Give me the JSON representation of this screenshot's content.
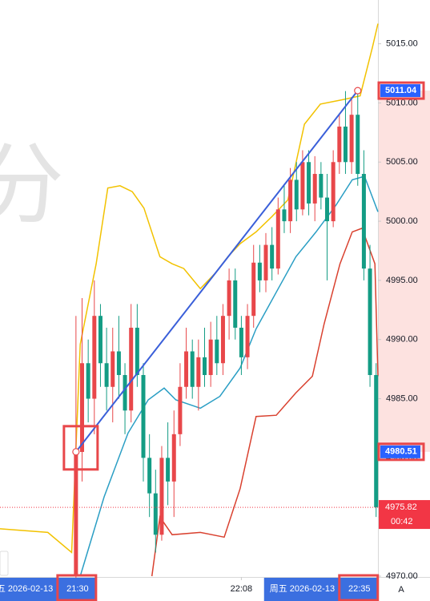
{
  "chart_data": {
    "type": "candlestick",
    "watermark": "分",
    "xlim": [
      -12.4,
      49.3
    ],
    "ylim": [
      4970,
      5018.7
    ],
    "yticks": [
      {
        "value": 4970,
        "label": "4970.00"
      },
      {
        "value": 4975,
        "label": "4975.00"
      },
      {
        "value": 4980,
        "label": "4980.00"
      },
      {
        "value": 4985,
        "label": "4985.00"
      },
      {
        "value": 4990,
        "label": "4990.00"
      },
      {
        "value": 4995,
        "label": "4995.00"
      },
      {
        "value": 5000,
        "label": "5000.00"
      },
      {
        "value": 5005,
        "label": "5005.00"
      },
      {
        "value": 5010,
        "label": "5010.00"
      },
      {
        "value": 5015,
        "label": "5015.00"
      }
    ],
    "xticks": [
      {
        "value": 0,
        "label": "21:30"
      },
      {
        "value": 27,
        "label": "22:08"
      },
      {
        "value": 46,
        "label": "22:35"
      }
    ],
    "crosshair_date": "周五 2026-02-13",
    "edge_label": ":13",
    "up_color": "#e8474a",
    "down_color": "#139c84",
    "x": [
      0,
      1,
      2,
      3,
      4,
      5,
      6,
      7,
      8,
      9,
      10,
      11,
      12,
      13,
      14,
      15,
      16,
      17,
      18,
      19,
      20,
      21,
      22,
      23,
      24,
      25,
      26,
      27,
      28,
      29,
      30,
      31,
      32,
      33,
      34,
      35,
      36,
      37,
      38,
      39,
      40,
      41,
      42,
      43,
      44,
      45,
      46,
      47,
      48,
      49
    ],
    "open": [
      4970,
      4980.5,
      4988,
      4985,
      4992,
      4988,
      4986,
      4989,
      4987,
      4984,
      4991,
      4987,
      4980,
      4977,
      4973.5,
      4980,
      4978,
      4982,
      4986,
      4989,
      4986,
      4988.5,
      4987,
      4990,
      4988,
      4992,
      4995,
      4991,
      4988.5,
      4992,
      4996.5,
      4995,
      4998,
      4996,
      5001,
      5000,
      5003.5,
      5001,
      5005,
      5001.5,
      5004,
      5002,
      5000,
      5005,
      5008,
      5005,
      5009,
      5004,
      4996,
      4987
    ],
    "high": [
      4992,
      4993.5,
      4990,
      4995,
      4993,
      4991,
      4991,
      4992,
      4988,
      4993,
      4993,
      4988,
      4982,
      4979,
      4981,
      4983,
      4984,
      4988,
      4991,
      4990,
      4990,
      4991,
      4991.5,
      4992,
      4993,
      4996,
      4996,
      4992,
      4993,
      4998,
      4998,
      4999,
      4999.5,
      5002,
      5003,
      5004.5,
      5005,
      5006,
      5006,
      5005.5,
      5005,
      5004,
      5006,
      5009,
      5011,
      5010.5,
      5011.04,
      5006,
      4998,
      4988
    ],
    "low": [
      4968,
      4978,
      4983,
      4982,
      4986,
      4984,
      4983,
      4985,
      4982,
      4983,
      4986,
      4978,
      4975,
      4972,
      4973,
      4976,
      4975,
      4981,
      4985,
      4985,
      4984,
      4986,
      4986,
      4987,
      4987,
      4990,
      4990,
      4987,
      4987.5,
      4991,
      4994,
      4994,
      4995,
      4995.5,
      4999,
      4999,
      5000,
      5000.5,
      5000.5,
      5000,
      5001,
      4995,
      4999.5,
      5004,
      5004,
      5004,
      5003,
      4995,
      4986,
      4975
    ],
    "close": [
      4980.5,
      4988,
      4985,
      4992,
      4988,
      4986,
      4989,
      4987,
      4984,
      4991,
      4987,
      4980,
      4977,
      4973.5,
      4980,
      4978,
      4982,
      4986,
      4989,
      4986,
      4988.5,
      4987,
      4990,
      4988,
      4992,
      4995,
      4991,
      4988.5,
      4992,
      4996.5,
      4995,
      4998,
      4996,
      5001,
      5000,
      5003.5,
      5001,
      5005,
      5001.5,
      5004,
      5002,
      5000,
      5005,
      5008,
      5005,
      5009,
      5004,
      4996,
      4987,
      4975.82
    ],
    "lines": [
      {
        "color": "#f2c200",
        "x": [
          -12.4,
          -4.6,
          -0.7,
          0.7,
          3.3,
          5.2,
          7.2,
          9.2,
          11.1,
          13.7,
          15.7,
          17.6,
          20.3,
          22.9,
          24.8,
          26.8,
          29.4,
          32.0,
          34.6,
          37.3,
          39.9,
          43.8,
          46.4,
          48.4,
          49.3
        ],
        "values": [
          4974.0,
          4973.7,
          4972.0,
          4989.6,
          4996.4,
          5002.8,
          5003.0,
          5002.5,
          5001.1,
          4997.0,
          4996.4,
          4996.0,
          4994.3,
          4995.7,
          4997.0,
          4998.1,
          4999.1,
          5000.4,
          5001.8,
          5008.2,
          5009.9,
          5010.3,
          5010.6,
          5014.7,
          5016.7
        ]
      },
      {
        "color": "#2a9ec4",
        "x": [
          0.7,
          4.6,
          8.5,
          11.8,
          14.4,
          16.3,
          20.3,
          23.5,
          26.8,
          29.4,
          32.7,
          35.9,
          39.2,
          42.5,
          45.1,
          47.1,
          49.3
        ],
        "values": [
          4970,
          4976.7,
          4982.1,
          4984.9,
          4985.9,
          4984.9,
          4984.2,
          4985.2,
          4987.6,
          4990.9,
          4994.0,
          4997.0,
          4999.1,
          5001.4,
          5003.5,
          5003.8,
          5000.8
        ]
      },
      {
        "color": "#d9412f",
        "x": [
          12.4,
          13.7,
          15.7,
          20.3,
          24.2,
          26.8,
          29.4,
          32.7,
          35.9,
          38.6,
          40.5,
          43.1,
          45.1,
          46.7,
          48.8,
          49.3
        ],
        "values": [
          4970,
          4975.0,
          4973.5,
          4973.7,
          4973.3,
          4977.4,
          4983.5,
          4983.6,
          4985.5,
          4986.9,
          4991.3,
          4996.4,
          4999.1,
          4999.4,
          4996.4,
          4986.9
        ]
      }
    ],
    "trendline": {
      "color": "#3a5fd9",
      "x": [
        0,
        46
      ],
      "values": [
        4980.51,
        5011.04
      ]
    },
    "price_labels": [
      {
        "value": 5011.04,
        "label": "5011.04",
        "color": "#2962ff"
      },
      {
        "value": 4980.51,
        "label": "4980.51",
        "color": "#2962ff"
      },
      {
        "value": 4975.82,
        "label": "4975.82",
        "color": "#f23645",
        "countdown": "00:42"
      }
    ],
    "scale_button": "A"
  }
}
